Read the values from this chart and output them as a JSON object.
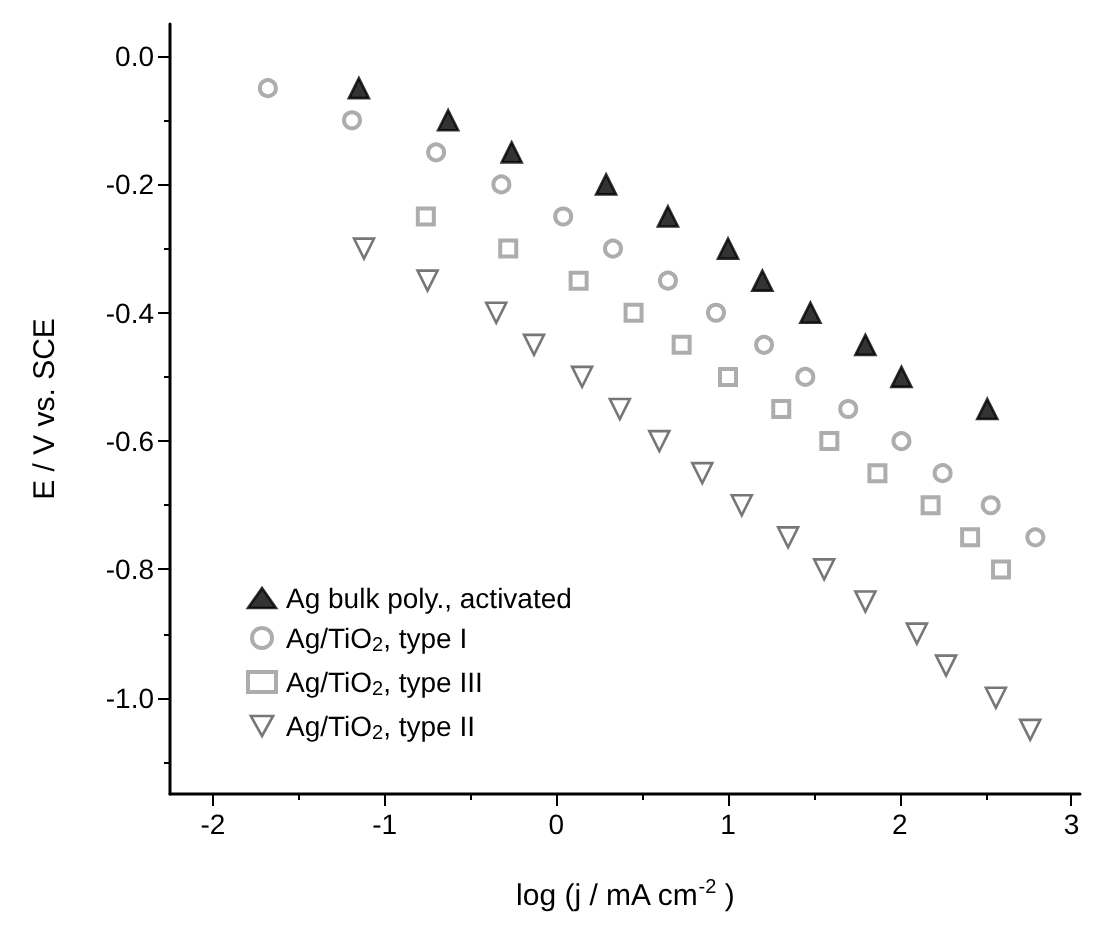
{
  "chart_data": {
    "type": "scatter",
    "xlabel": "log (j / mA cm$^{-2}$ )",
    "ylabel": "E / V vs. SCE",
    "xlim": [
      -2.25,
      3.05
    ],
    "xticks": [
      -2,
      -1,
      0,
      1,
      2,
      3
    ],
    "ylim": [
      -1.15,
      0.05
    ],
    "yticks": [
      {
        "value": 0,
        "label": "0.0"
      },
      {
        "value": -0.2,
        "label": "-0.2"
      },
      {
        "value": -0.4,
        "label": "-0.4"
      },
      {
        "value": -0.6,
        "label": "-0.6"
      },
      {
        "value": -0.8,
        "label": "-0.8"
      },
      {
        "value": -1,
        "label": "-1.0"
      }
    ],
    "grid": false,
    "legend": "bottom left",
    "series": [
      {
        "name": "Ag bulk poly., activated",
        "color": "#000000",
        "marker": "triangle",
        "x": [
          -1.15,
          -0.63,
          -0.26,
          0.29,
          0.65,
          1.0,
          1.2,
          1.48,
          1.8,
          2.01,
          2.51
        ],
        "values": [
          -0.05,
          -0.1,
          -0.15,
          -0.2,
          -0.25,
          -0.3,
          -0.35,
          -0.4,
          -0.45,
          -0.5,
          -0.55
        ]
      },
      {
        "name": "Ag/TiO$_{2}$, type I",
        "color": "#999999",
        "marker": "circle",
        "x": [
          -1.68,
          -1.19,
          -0.7,
          -0.32,
          0.04,
          0.33,
          0.65,
          0.93,
          1.21,
          1.45,
          1.7,
          2.01,
          2.25,
          2.53,
          2.79
        ],
        "values": [
          -0.05,
          -0.1,
          -0.15,
          -0.2,
          -0.25,
          -0.3,
          -0.35,
          -0.4,
          -0.45,
          -0.5,
          -0.55,
          -0.6,
          -0.65,
          -0.7,
          -0.75
        ]
      },
      {
        "name": "Ag/TiO$_{2}$, type III",
        "color": "#999999",
        "marker": "square",
        "x": [
          -0.76,
          -0.28,
          0.13,
          0.45,
          0.73,
          1.0,
          1.31,
          1.59,
          1.87,
          2.18,
          2.41,
          2.59
        ],
        "values": [
          -0.25,
          -0.3,
          -0.35,
          -0.4,
          -0.45,
          -0.5,
          -0.55,
          -0.6,
          -0.65,
          -0.7,
          -0.75,
          -0.8
        ]
      },
      {
        "name": "Ag/TiO$_{2}$, type II",
        "color": "#555555",
        "marker": "triangle-down",
        "x": [
          -1.12,
          -0.75,
          -0.35,
          -0.13,
          0.15,
          0.37,
          0.6,
          0.85,
          1.08,
          1.35,
          1.56,
          1.8,
          2.1,
          2.27,
          2.56,
          2.76
        ],
        "values": [
          -0.3,
          -0.35,
          -0.4,
          -0.45,
          -0.5,
          -0.55,
          -0.6,
          -0.65,
          -0.7,
          -0.75,
          -0.8,
          -0.85,
          -0.9,
          -0.95,
          -1.0,
          -1.05
        ]
      }
    ]
  }
}
